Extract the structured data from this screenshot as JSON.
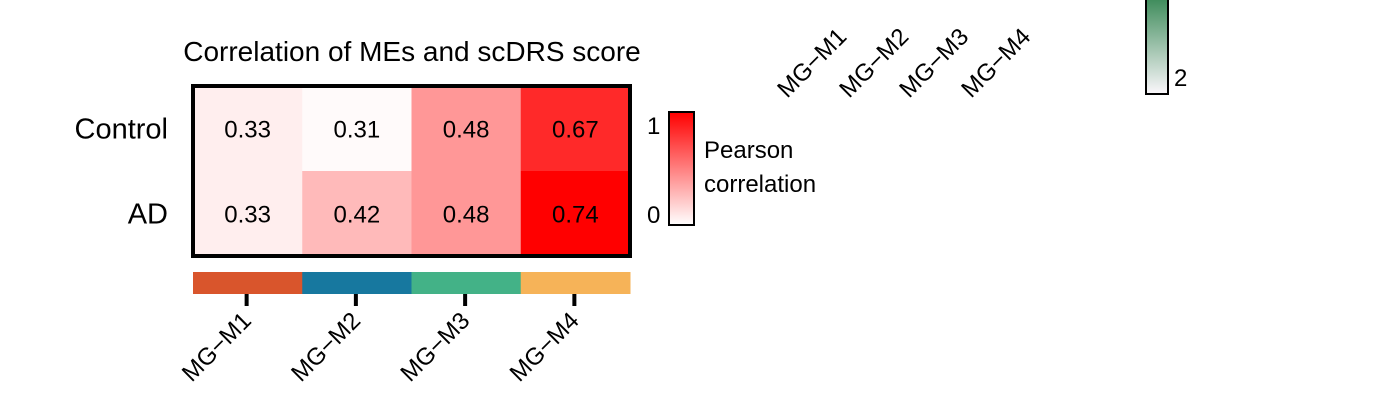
{
  "chart_data": {
    "type": "heatmap",
    "title": "Correlation of MEs and scDRS score",
    "rows": [
      "Control",
      "AD"
    ],
    "columns": [
      "MG−M1",
      "MG−M2",
      "MG−M3",
      "MG−M4"
    ],
    "values": [
      [
        0.33,
        0.31,
        0.48,
        0.67
      ],
      [
        0.33,
        0.42,
        0.48,
        0.74
      ]
    ],
    "value_labels": [
      [
        "0.33",
        "0.31",
        "0.48",
        "0.67"
      ],
      [
        "0.33",
        "0.42",
        "0.48",
        "0.74"
      ]
    ],
    "color_scale": {
      "label_lines": [
        "Pearson",
        "correlation"
      ],
      "min": 0,
      "max": 1,
      "min_label": "0",
      "max_label": "1",
      "low_color": "#ffffff",
      "high_color": "#ff0000"
    },
    "column_colors": [
      "#d9552c",
      "#17789f",
      "#43b287",
      "#f6b358"
    ]
  },
  "background_fragments": {
    "cropped_labels": [
      "MG−M1",
      "MG−M2",
      "MG−M3",
      "MG−M4"
    ],
    "legend_tick_label": "2",
    "legend_colors": [
      "#3d8b5a",
      "#fbf7fb"
    ]
  }
}
